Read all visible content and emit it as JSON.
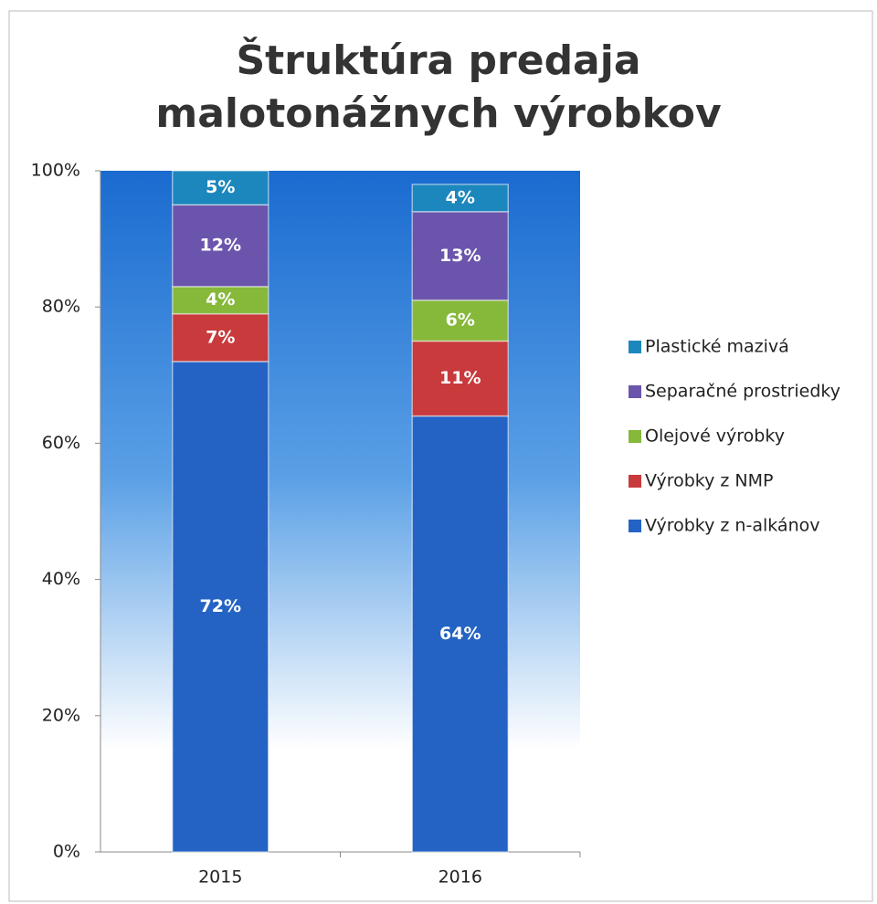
{
  "chart_data": {
    "type": "stacked_bar",
    "title": "Štruktúra predaja malotonážnych výrobkov",
    "categories": [
      "2015",
      "2016"
    ],
    "series": [
      {
        "name": "Výrobky z n-alkánov",
        "color": "#2463c4",
        "values": [
          72,
          64
        ],
        "value_labels": [
          "72%",
          "64%"
        ]
      },
      {
        "name": "Výrobky z NMP",
        "color": "#c83a3c",
        "values": [
          7,
          11
        ],
        "value_labels": [
          "7%",
          "11%"
        ]
      },
      {
        "name": "Olejové výrobky",
        "color": "#86b83a",
        "values": [
          4,
          6
        ],
        "value_labels": [
          "4%",
          "6%"
        ]
      },
      {
        "name": "Separačné prostriedky",
        "color": "#6b55ac",
        "values": [
          12,
          13
        ],
        "value_labels": [
          "12%",
          "13%"
        ]
      },
      {
        "name": "Plastické mazivá",
        "color": "#1c87bd",
        "values": [
          5,
          4
        ],
        "value_labels": [
          "5%",
          "4%"
        ]
      }
    ],
    "ylim": [
      0,
      100
    ],
    "yticks": [
      {
        "value": 0,
        "label": "0%"
      },
      {
        "value": 20,
        "label": "20%"
      },
      {
        "value": 40,
        "label": "40%"
      },
      {
        "value": 60,
        "label": "60%"
      },
      {
        "value": 80,
        "label": "80%"
      },
      {
        "value": 100,
        "label": "100%"
      }
    ],
    "legend": "right"
  }
}
